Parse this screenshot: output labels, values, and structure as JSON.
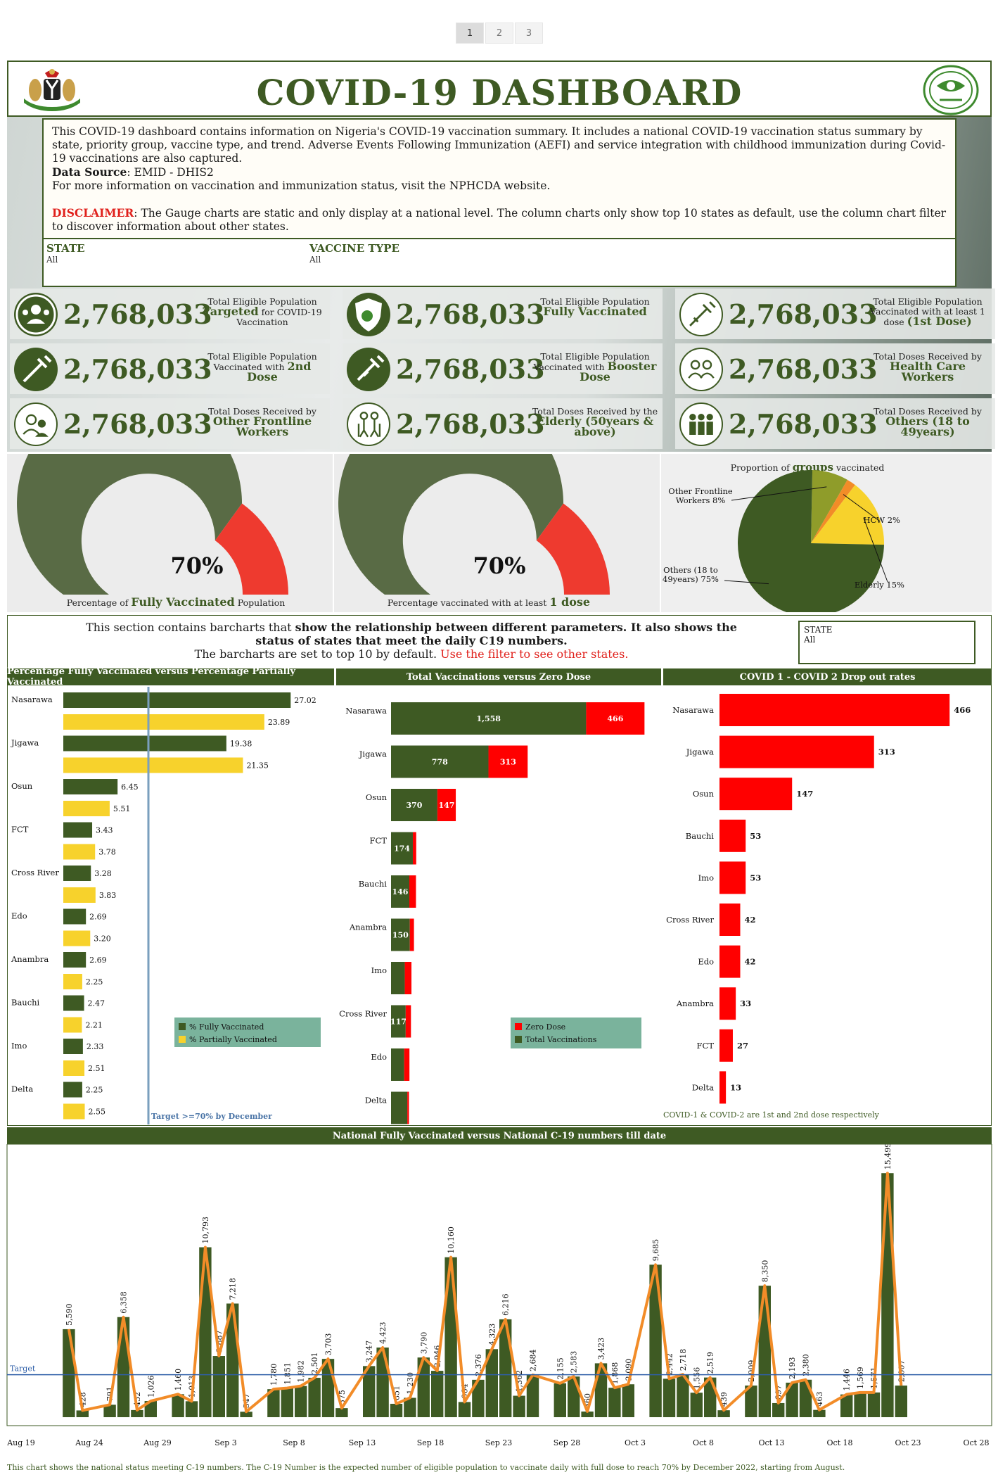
{
  "pager": [
    "1",
    "2",
    "3"
  ],
  "header": {
    "title": "COVID-19 DASHBOARD"
  },
  "info": {
    "intro": "This COVID-19 dashboard contains information on Nigeria's COVID-19 vaccination summary. It includes a national COVID-19 vaccination status summary by state, priority group, vaccine type, and trend. Adverse Events Following Immunization (AEFI) and service integration with childhood immunization during Covid-19 vaccinations are also captured.",
    "source_label": "Data Source",
    "source_value": ": EMID - DHIS2",
    "more": "For more information on vaccination and immunization status, visit the NPHCDA website.",
    "disclaimer_label": "DISCLAIMER",
    "disclaimer_text": ": The Gauge charts are static and only display at a national level. The column charts only show top 10 states as default, use the column chart filter to discover information about other states."
  },
  "filters": {
    "state_label": "STATE",
    "state_value": "All",
    "vaccine_label": "VACCINE TYPE",
    "vaccine_value": "All"
  },
  "kpis": [
    {
      "value": "2,768,033",
      "pre": "Total Eligible Population",
      "bold": "Targeted",
      "post": " for COVID-19 Vaccination",
      "icon": "target-people-icon"
    },
    {
      "value": "2,768,033",
      "pre": "Total Eligible Population",
      "bold": "Fully Vaccinated",
      "post": "",
      "icon": "shield-virus-icon"
    },
    {
      "value": "2,768,033",
      "pre": "Total Eligible Population Vaccinated with at least 1 dose",
      "bold": "(1st Dose)",
      "post": "",
      "icon": "syringe-outline-icon"
    },
    {
      "value": "2,768,033",
      "pre": "Total Eligible Population Vaccinated with",
      "bold": "2nd Dose",
      "post": "",
      "icon": "syringe-icon"
    },
    {
      "value": "2,768,033",
      "pre": "Total Eligible Population Vaccinated with",
      "bold": "Booster Dose",
      "post": "",
      "icon": "booster-syringe-icon"
    },
    {
      "value": "2,768,033",
      "pre": "Total Doses Received by",
      "bold": "Health Care Workers",
      "post": "",
      "icon": "health-workers-icon"
    },
    {
      "value": "2,768,033",
      "pre": "Total Doses Received by",
      "bold": "Other Frontline Workers",
      "post": "",
      "icon": "frontline-workers-icon"
    },
    {
      "value": "2,768,033",
      "pre": "Total Doses Received by the",
      "bold": "Elderly (50years & above)",
      "post": "",
      "icon": "elderly-icon"
    },
    {
      "value": "2,768,033",
      "pre": "Total Doses Received by",
      "bold": "Others (18 to 49years)",
      "post": "",
      "icon": "others-group-icon"
    }
  ],
  "gauges": [
    {
      "value": "70%",
      "pct": 70,
      "label_pre": "Percentage of",
      "label_bold": "Fully Vaccinated",
      "label_post": "Population"
    },
    {
      "value": "70%",
      "pct": 70,
      "label_pre": "Percentage vaccinated with at least",
      "label_bold": "1 dose",
      "label_post": ""
    }
  ],
  "colors": {
    "green": "#3e5a23",
    "gauge_green": "#596b45",
    "red": "#ee3a2f",
    "yellow": "#f7d22c",
    "olive": "#8f9c2a",
    "orange": "#f28c28",
    "bright_red": "#ff0000",
    "legend_bg": "#7ab39c",
    "target_line": "#2f5fa8"
  },
  "pie": {
    "title_pre": "Proportion of",
    "title_bold": "groups",
    "title_post": "vaccinated",
    "slices": [
      {
        "name": "Others (18 to 49years)",
        "label": "Others (18 to 49years) 75%",
        "value": 75,
        "color": "#3e5a23"
      },
      {
        "name": "Other Frontline Workers",
        "label": "Other Frontline Workers 8%",
        "value": 8,
        "color": "#8f9c2a"
      },
      {
        "name": "HCW",
        "label": "HCW 2%",
        "value": 2,
        "color": "#f28c28"
      },
      {
        "name": "Elderly",
        "label": "Elderly 15%",
        "value": 15,
        "color": "#f7d22c"
      }
    ]
  },
  "bars_intro": {
    "line1_pre": "This section contains barcharts that ",
    "line1_bold": "show the relationship between different parameters. It also shows the status of states that meet the daily C19 numbers.",
    "line2_pre": "The barcharts are set to top 10 by default. ",
    "line2_red": "Use the filter to see other states.",
    "state_label": "STATE",
    "state_value": "All"
  },
  "chart_data": [
    {
      "type": "bar",
      "title": "Percentage Fully Vaccinated versus Percentage Partially Vaccinated",
      "categories": [
        "Nasarawa",
        "Jigawa",
        "Osun",
        "FCT",
        "Cross River",
        "Edo",
        "Anambra",
        "Bauchi",
        "Imo",
        "Delta"
      ],
      "series": [
        {
          "name": "% Fully Vaccinated",
          "values": [
            27.02,
            19.38,
            6.45,
            3.43,
            3.28,
            2.69,
            2.69,
            2.47,
            2.33,
            2.25
          ],
          "labels": [
            "27.02",
            "19.38",
            "6.45",
            "3.43",
            "3.28",
            "2.69",
            "2.69",
            "2.47",
            "2.33",
            "2.25"
          ]
        },
        {
          "name": "% Partially Vaccinated",
          "values": [
            23.89,
            21.35,
            5.51,
            3.78,
            3.83,
            3.2,
            2.25,
            2.21,
            2.51,
            2.55
          ],
          "labels": [
            "23.89",
            "21.35",
            "5.51",
            "3.78",
            "3.83",
            "3.20",
            "2.25",
            "2.21",
            "2.51",
            "2.55"
          ]
        }
      ],
      "target_label": "Target >=70% by December",
      "target_value": 3.5
    },
    {
      "type": "bar",
      "title": "Total Vaccinations versus Zero Dose",
      "categories": [
        "Nasarawa",
        "Jigawa",
        "Osun",
        "FCT",
        "Bauchi",
        "Anambra",
        "Imo",
        "Cross River",
        "Edo",
        "Delta"
      ],
      "series": [
        {
          "name": "Total Vaccinations",
          "values": [
            1558,
            778,
            370,
            174,
            146,
            150,
            110,
            117,
            105,
            130
          ],
          "labels": [
            "1,558",
            "778",
            "370",
            "174",
            "146",
            "150",
            "",
            "117",
            "",
            ""
          ]
        },
        {
          "name": "Zero Dose",
          "values": [
            466,
            313,
            147,
            27,
            53,
            33,
            53,
            42,
            42,
            13
          ],
          "labels": [
            "466",
            "313",
            "147",
            "",
            "",
            "",
            "",
            "",
            "",
            ""
          ]
        }
      ],
      "legend": [
        "Zero Dose",
        "Total Vaccinations"
      ]
    },
    {
      "type": "bar",
      "title": "COVID 1 - COVID 2 Drop out rates",
      "categories": [
        "Nasarawa",
        "Jigawa",
        "Osun",
        "Bauchi",
        "Imo",
        "Cross River",
        "Edo",
        "Anambra",
        "FCT",
        "Delta"
      ],
      "values": [
        466,
        313,
        147,
        53,
        53,
        42,
        42,
        33,
        27,
        13
      ],
      "note": "COVID-1 & COVID-2 are 1st and 2nd dose respectively"
    },
    {
      "type": "bar",
      "title": "National Fully Vaccinated versus National C-19 numbers till date",
      "x_ticks": [
        "Aug 19",
        "Aug 24",
        "Aug 29",
        "Sep 3",
        "Sep 8",
        "Sep 13",
        "Sep 18",
        "Sep 23",
        "Sep 28",
        "Oct 3",
        "Oct 8",
        "Oct 13",
        "Oct 18",
        "Oct 23",
        "Oct 28"
      ],
      "target_label": "Target",
      "target_value": 2700,
      "bars": [
        {
          "day": 3,
          "v": 5590,
          "l": "5,590"
        },
        {
          "day": 4,
          "v": 428,
          "l": "428"
        },
        {
          "day": 6,
          "v": 791,
          "l": "791"
        },
        {
          "day": 7,
          "v": 6358,
          "l": "6,358"
        },
        {
          "day": 8,
          "v": 452,
          "l": "452"
        },
        {
          "day": 9,
          "v": 1026,
          "l": "1,026"
        },
        {
          "day": 11,
          "v": 1460,
          "l": "1,460"
        },
        {
          "day": 12,
          "v": 1013,
          "l": "1,013"
        },
        {
          "day": 13,
          "v": 10793,
          "l": "10,793"
        },
        {
          "day": 14,
          "v": 3887,
          "l": "3,887"
        },
        {
          "day": 15,
          "v": 7218,
          "l": "7,218"
        },
        {
          "day": 16,
          "v": 347,
          "l": "347"
        },
        {
          "day": 18,
          "v": 1780,
          "l": "1,780"
        },
        {
          "day": 19,
          "v": 1851,
          "l": "1,851"
        },
        {
          "day": 20,
          "v": 1982,
          "l": "1,982"
        },
        {
          "day": 21,
          "v": 2501,
          "l": "2,501"
        },
        {
          "day": 22,
          "v": 3703,
          "l": "3,703"
        },
        {
          "day": 23,
          "v": 575,
          "l": "575"
        },
        {
          "day": 25,
          "v": 3247,
          "l": "3,247"
        },
        {
          "day": 26,
          "v": 4423,
          "l": "4,423"
        },
        {
          "day": 27,
          "v": 851,
          "l": "851"
        },
        {
          "day": 28,
          "v": 1230,
          "l": "1,230"
        },
        {
          "day": 29,
          "v": 3790,
          "l": "3,790"
        },
        {
          "day": 30,
          "v": 2946,
          "l": "2,946"
        },
        {
          "day": 31,
          "v": 10160,
          "l": "10,160"
        },
        {
          "day": 32,
          "v": 964,
          "l": "964"
        },
        {
          "day": 33,
          "v": 2376,
          "l": "2,376"
        },
        {
          "day": 34,
          "v": 4323,
          "l": "4,323"
        },
        {
          "day": 35,
          "v": 6216,
          "l": "6,216"
        },
        {
          "day": 36,
          "v": 1362,
          "l": "1,362"
        },
        {
          "day": 37,
          "v": 2684,
          "l": "2,684"
        },
        {
          "day": 39,
          "v": 2155,
          "l": "2,155"
        },
        {
          "day": 40,
          "v": 2583,
          "l": "2,583"
        },
        {
          "day": 41,
          "v": 360,
          "l": "360"
        },
        {
          "day": 42,
          "v": 3423,
          "l": "3,423"
        },
        {
          "day": 43,
          "v": 1868,
          "l": "1,868"
        },
        {
          "day": 44,
          "v": 2090,
          "l": "2,090"
        },
        {
          "day": 46,
          "v": 9685,
          "l": "9,685"
        },
        {
          "day": 47,
          "v": 2442,
          "l": "2,442"
        },
        {
          "day": 48,
          "v": 2718,
          "l": "2,718"
        },
        {
          "day": 49,
          "v": 1556,
          "l": "1,556"
        },
        {
          "day": 50,
          "v": 2519,
          "l": "2,519"
        },
        {
          "day": 51,
          "v": 439,
          "l": "439"
        },
        {
          "day": 53,
          "v": 2009,
          "l": "2,009"
        },
        {
          "day": 54,
          "v": 8350,
          "l": "8,350"
        },
        {
          "day": 55,
          "v": 897,
          "l": "897"
        },
        {
          "day": 56,
          "v": 2193,
          "l": "2,193"
        },
        {
          "day": 57,
          "v": 2380,
          "l": "2,380"
        },
        {
          "day": 58,
          "v": 463,
          "l": "463"
        },
        {
          "day": 60,
          "v": 1446,
          "l": "1,446"
        },
        {
          "day": 61,
          "v": 1569,
          "l": "1,569"
        },
        {
          "day": 62,
          "v": 1571,
          "l": "1,571"
        },
        {
          "day": 63,
          "v": 15499,
          "l": "15,499"
        },
        {
          "day": 64,
          "v": 2007,
          "l": "2,007"
        }
      ],
      "footnote": "This chart shows the national status meeting C-19 numbers. The C-19 Number is the expected number of eligible population to vaccinate daily with full dose to reach 70% by December 2022, starting from August."
    }
  ]
}
